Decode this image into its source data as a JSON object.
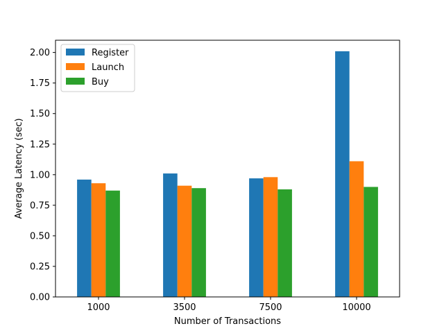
{
  "chart_data": {
    "type": "bar",
    "categories": [
      "1000",
      "3500",
      "7500",
      "10000"
    ],
    "series": [
      {
        "name": "Register",
        "color": "#1f77b4",
        "values": [
          0.96,
          1.01,
          0.97,
          2.01
        ]
      },
      {
        "name": "Launch",
        "color": "#ff7f0e",
        "values": [
          0.93,
          0.91,
          0.98,
          1.11
        ]
      },
      {
        "name": "Buy",
        "color": "#2ca02c",
        "values": [
          0.87,
          0.89,
          0.88,
          0.9
        ]
      }
    ],
    "title": "",
    "xlabel": "Number of Transactions",
    "ylabel": "Average Latency (sec)",
    "ylim": [
      0,
      2.1
    ],
    "yticks": [
      "0.00",
      "0.25",
      "0.50",
      "0.75",
      "1.00",
      "1.25",
      "1.50",
      "1.75",
      "2.00"
    ],
    "grid": false,
    "legend_position": "top-left"
  }
}
